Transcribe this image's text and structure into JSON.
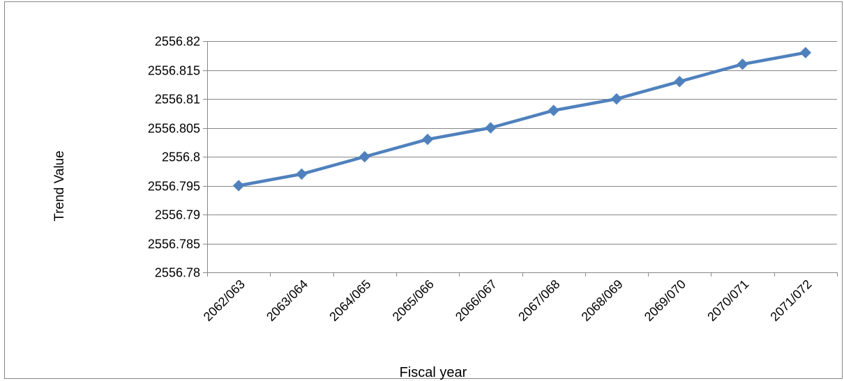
{
  "chart_data": {
    "type": "line",
    "title": "",
    "xlabel": "Fiscal year",
    "ylabel": "Trend Value",
    "categories": [
      "2062/063",
      "2063/064",
      "2064/065",
      "2065/066",
      "2066/067",
      "2067/068",
      "2068/069",
      "2069/070",
      "2070/071",
      "2071/072"
    ],
    "series": [
      {
        "values": [
          2556.795,
          2556.797,
          2556.8,
          2556.803,
          2556.805,
          2556.808,
          2556.81,
          2556.813,
          2556.816,
          2556.818
        ]
      }
    ],
    "ylim": [
      2556.78,
      2556.82
    ],
    "yticks": [
      "2556.78",
      "2556.785",
      "2556.79",
      "2556.795",
      "2556.8",
      "2556.805",
      "2556.81",
      "2556.815",
      "2556.82"
    ],
    "grid": true,
    "legend": "none",
    "colors": {
      "line": "#4f81bd",
      "grid": "#868686",
      "axis": "#868686"
    }
  }
}
